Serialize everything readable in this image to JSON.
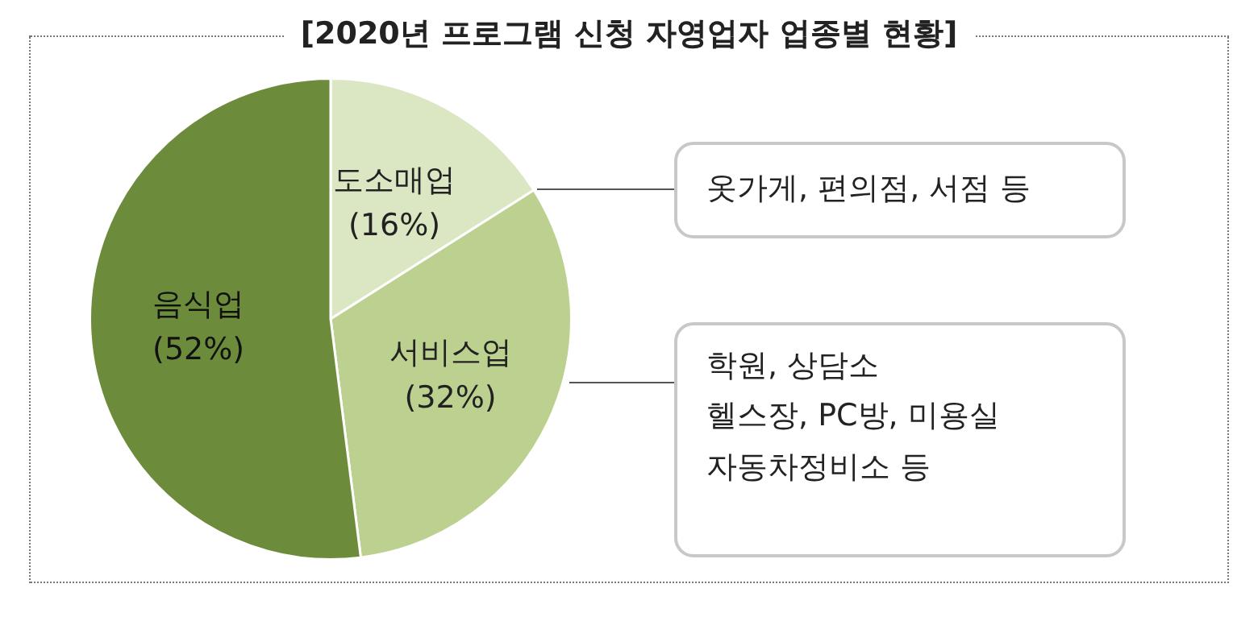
{
  "chart_data": {
    "type": "pie",
    "title": "[2020년 프로그램 신청 자영업자 업종별 현황]",
    "categories": [
      "도소매업",
      "서비스업",
      "음식업"
    ],
    "values": [
      16,
      32,
      52
    ],
    "colors": [
      "#dbe6c3",
      "#bcd190",
      "#6c8c3b"
    ],
    "value_labels": [
      "(16%)",
      "(32%)",
      "(52%)"
    ],
    "annotations": [
      "옷가게, 편의점, 서점 등",
      "학원, 상담소\n헬스장, PC방, 미용실\n자동차정비소 등"
    ],
    "legend": false
  }
}
